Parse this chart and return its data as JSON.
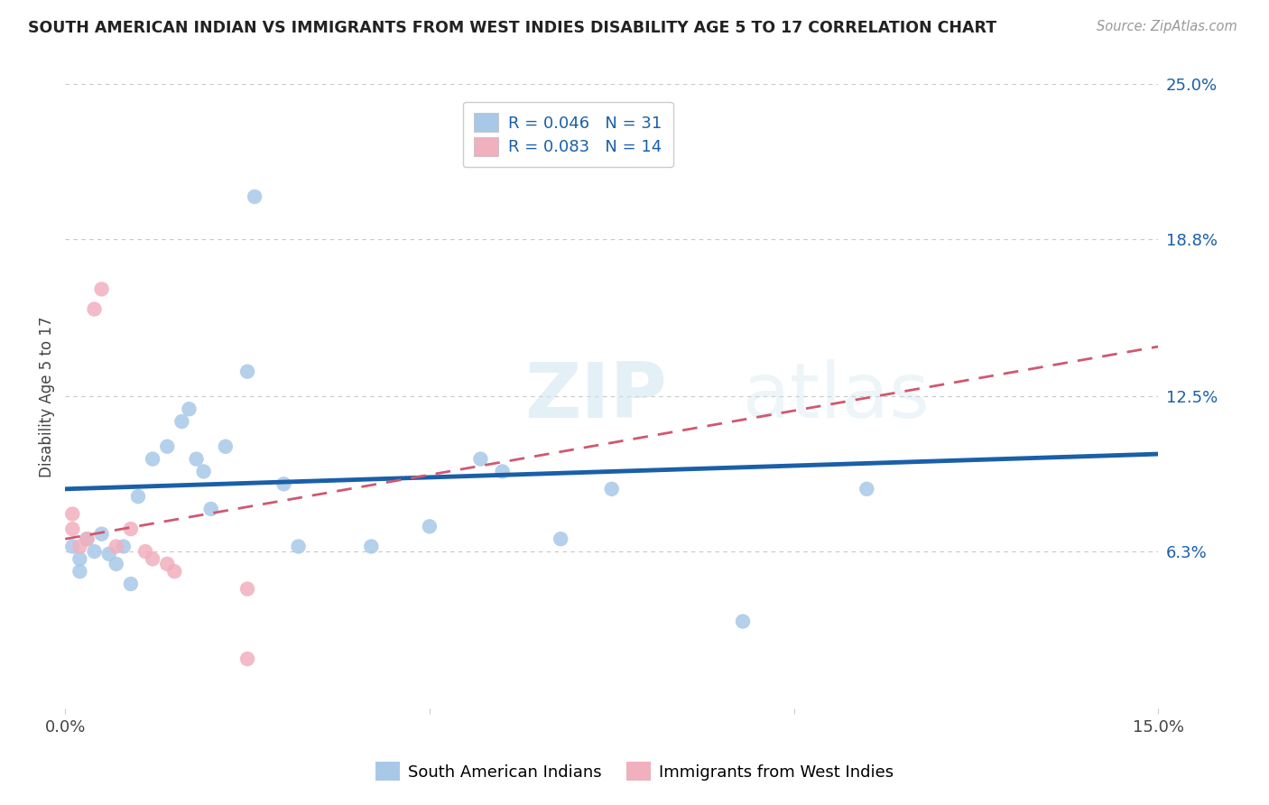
{
  "title": "SOUTH AMERICAN INDIAN VS IMMIGRANTS FROM WEST INDIES DISABILITY AGE 5 TO 17 CORRELATION CHART",
  "source": "Source: ZipAtlas.com",
  "ylabel": "Disability Age 5 to 17",
  "xlim": [
    0.0,
    0.15
  ],
  "ylim": [
    0.0,
    0.25
  ],
  "xtick_positions": [
    0.0,
    0.05,
    0.1,
    0.15
  ],
  "xtick_labels": [
    "0.0%",
    "",
    "",
    "15.0%"
  ],
  "ytick_vals_right": [
    0.25,
    0.188,
    0.125,
    0.063,
    0.0
  ],
  "ytick_labels_right": [
    "25.0%",
    "18.8%",
    "12.5%",
    "6.3%",
    ""
  ],
  "watermark": "ZIPatlas",
  "series1_name": "South American Indians",
  "series1_R": "0.046",
  "series1_N": "31",
  "series1_color": "#a8c8e8",
  "series1_line_color": "#1a5fa8",
  "series2_name": "Immigrants from West Indies",
  "series2_R": "0.083",
  "series2_N": "14",
  "series2_color": "#f0b0be",
  "series2_line_color": "#d05870",
  "blue_x": [
    0.001,
    0.002,
    0.002,
    0.003,
    0.004,
    0.005,
    0.006,
    0.007,
    0.008,
    0.009,
    0.01,
    0.012,
    0.014,
    0.016,
    0.017,
    0.018,
    0.019,
    0.02,
    0.022,
    0.025,
    0.026,
    0.03,
    0.032,
    0.042,
    0.05,
    0.057,
    0.06,
    0.068,
    0.075,
    0.093,
    0.11
  ],
  "blue_y": [
    0.065,
    0.06,
    0.055,
    0.068,
    0.063,
    0.07,
    0.062,
    0.058,
    0.065,
    0.05,
    0.085,
    0.1,
    0.105,
    0.115,
    0.12,
    0.1,
    0.095,
    0.08,
    0.105,
    0.135,
    0.205,
    0.09,
    0.065,
    0.065,
    0.073,
    0.1,
    0.095,
    0.068,
    0.088,
    0.035,
    0.088
  ],
  "pink_x": [
    0.001,
    0.001,
    0.002,
    0.003,
    0.004,
    0.005,
    0.007,
    0.009,
    0.011,
    0.012,
    0.014,
    0.015,
    0.025,
    0.025
  ],
  "pink_y": [
    0.078,
    0.072,
    0.065,
    0.068,
    0.16,
    0.168,
    0.065,
    0.072,
    0.063,
    0.06,
    0.058,
    0.055,
    0.048,
    0.02
  ],
  "blue_trend_x0": 0.0,
  "blue_trend_y0": 0.088,
  "blue_trend_x1": 0.15,
  "blue_trend_y1": 0.102,
  "pink_trend_x0": 0.0,
  "pink_trend_y0": 0.068,
  "pink_trend_x1": 0.15,
  "pink_trend_y1": 0.145,
  "background_color": "#ffffff",
  "grid_color": "#c8c8c8"
}
